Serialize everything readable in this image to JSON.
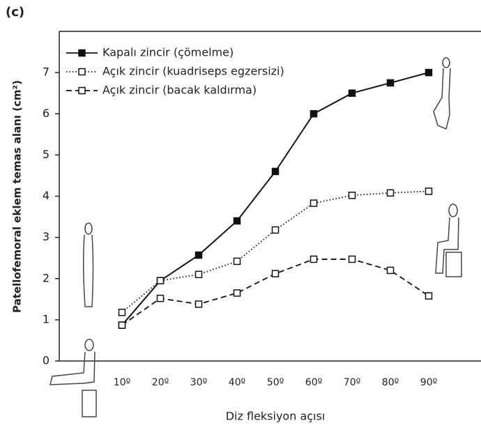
{
  "panel_label": "(c)",
  "chart_data": {
    "type": "line",
    "x_label": "Diz fleksiyon açısı",
    "y_label": "Patellofemoral eklem temas alanı (cm²)",
    "categories": [
      "10º",
      "20º",
      "30º",
      "40º",
      "50º",
      "60º",
      "70º",
      "80º",
      "90º"
    ],
    "ylim": [
      0,
      8
    ],
    "yticks": [
      0,
      1,
      2,
      3,
      4,
      5,
      6,
      7
    ],
    "legend": "top-left",
    "series": [
      {
        "name": "Kapalı zincir (çömelme)",
        "color": "#111111",
        "line_style": "solid",
        "marker": "filled-square",
        "values": [
          0.87,
          1.95,
          2.57,
          3.4,
          4.6,
          6.0,
          6.5,
          6.75,
          7.0
        ]
      },
      {
        "name": "Açık zincir (kuadriseps egzersizi)",
        "color": "#111111",
        "line_style": "dotted",
        "marker": "open-square",
        "values": [
          1.18,
          1.95,
          2.1,
          2.42,
          3.18,
          3.83,
          4.02,
          4.08,
          4.12
        ]
      },
      {
        "name": "Açık zincir (bacak kaldırma)",
        "color": "#111111",
        "line_style": "dashed",
        "marker": "open-square",
        "values": [
          0.87,
          1.52,
          1.38,
          1.65,
          2.12,
          2.47,
          2.47,
          2.2,
          1.58
        ]
      }
    ]
  }
}
